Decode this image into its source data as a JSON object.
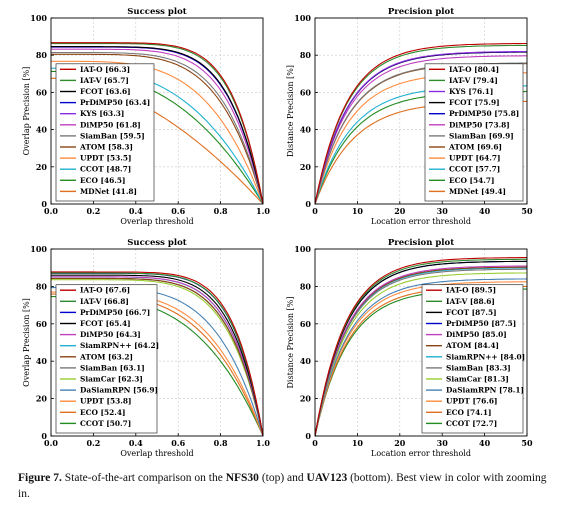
{
  "charts": [
    {
      "id": "nfs-success",
      "type": "line",
      "kind": "success",
      "title": "Success plot",
      "xlabel": "Overlap threshold",
      "ylabel": "Overlap Precision [%]",
      "xlim": [
        0,
        1
      ],
      "ylim": [
        0,
        100
      ],
      "xticks": [
        "0.0",
        "0.2",
        "0.4",
        "0.6",
        "0.8",
        "1.0"
      ],
      "yticks": [
        "0",
        "20",
        "40",
        "60",
        "80",
        "100"
      ],
      "legend_position": "bottom-left",
      "series": [
        {
          "name": "IAT-O [66.3]",
          "score": 66.3,
          "color": "#c00000"
        },
        {
          "name": "IAT-V [65.7]",
          "score": 65.7,
          "color": "#2e8b2e"
        },
        {
          "name": "FCOT [63.6]",
          "score": 63.6,
          "color": "#000000"
        },
        {
          "name": "PrDiMP50 [63.4]",
          "score": 63.4,
          "color": "#0000cc"
        },
        {
          "name": "KYS [63.3]",
          "score": 63.3,
          "color": "#8a2be2"
        },
        {
          "name": "DiMP50 [61.8]",
          "score": 61.8,
          "color": "#c040c0"
        },
        {
          "name": "SiamBan [59.5]",
          "score": 59.5,
          "color": "#7a7a7a"
        },
        {
          "name": "ATOM [58.3]",
          "score": 58.3,
          "color": "#8b4513"
        },
        {
          "name": "UPDT [53.5]",
          "score": 53.5,
          "color": "#ff8c40"
        },
        {
          "name": "CCOT [48.7]",
          "score": 48.7,
          "color": "#20b2d0"
        },
        {
          "name": "ECO [46.5]",
          "score": 46.5,
          "color": "#228b22"
        },
        {
          "name": "MDNet [41.8]",
          "score": 41.8,
          "color": "#e07020"
        }
      ]
    },
    {
      "id": "nfs-precision",
      "type": "line",
      "kind": "precision",
      "title": "Precision plot",
      "xlabel": "Location error threshold",
      "ylabel": "Distance Precision [%]",
      "xlim": [
        0,
        50
      ],
      "ylim": [
        0,
        100
      ],
      "xticks": [
        "0",
        "10",
        "20",
        "30",
        "40",
        "50"
      ],
      "yticks": [
        "0",
        "20",
        "40",
        "60",
        "80",
        "100"
      ],
      "legend_position": "bottom-right",
      "series": [
        {
          "name": "IAT-O [80.4]",
          "score": 80.4,
          "color": "#c00000"
        },
        {
          "name": "IAT-V [79.4]",
          "score": 79.4,
          "color": "#2e8b2e"
        },
        {
          "name": "KYS [76.1]",
          "score": 76.1,
          "color": "#8a2be2"
        },
        {
          "name": "FCOT [75.9]",
          "score": 75.9,
          "color": "#000000"
        },
        {
          "name": "PrDiMP50 [75.8]",
          "score": 75.8,
          "color": "#0000cc"
        },
        {
          "name": "DiMP50 [73.8]",
          "score": 73.8,
          "color": "#c040c0"
        },
        {
          "name": "SiamBan [69.9]",
          "score": 69.9,
          "color": "#7a7a7a"
        },
        {
          "name": "ATOM [69.6]",
          "score": 69.6,
          "color": "#8b4513"
        },
        {
          "name": "UPDT [64.7]",
          "score": 64.7,
          "color": "#ff8c40"
        },
        {
          "name": "CCOT [57.7]",
          "score": 57.7,
          "color": "#20b2d0"
        },
        {
          "name": "ECO [54.7]",
          "score": 54.7,
          "color": "#228b22"
        },
        {
          "name": "MDNet [49.4]",
          "score": 49.4,
          "color": "#e07020"
        }
      ]
    },
    {
      "id": "uav-success",
      "type": "line",
      "kind": "success",
      "title": "Success plot",
      "xlabel": "Overlap threshold",
      "ylabel": "Overlap Precision [%]",
      "xlim": [
        0,
        1
      ],
      "ylim": [
        0,
        100
      ],
      "xticks": [
        "0.0",
        "0.2",
        "0.4",
        "0.6",
        "0.8",
        "1.0"
      ],
      "yticks": [
        "0",
        "20",
        "40",
        "60",
        "80",
        "100"
      ],
      "legend_position": "bottom-left",
      "series": [
        {
          "name": "IAT-O [67.6]",
          "score": 67.6,
          "color": "#c00000"
        },
        {
          "name": "IAT-V [66.8]",
          "score": 66.8,
          "color": "#2e8b2e"
        },
        {
          "name": "PrDiMP50 [66.7]",
          "score": 66.7,
          "color": "#0000cc"
        },
        {
          "name": "FCOT [65.4]",
          "score": 65.4,
          "color": "#000000"
        },
        {
          "name": "DiMP50 [64.3]",
          "score": 64.3,
          "color": "#c040c0"
        },
        {
          "name": "SiamRPN++ [64.2]",
          "score": 64.2,
          "color": "#20b2d0"
        },
        {
          "name": "ATOM [63.2]",
          "score": 63.2,
          "color": "#8b4513"
        },
        {
          "name": "SiamBan [63.1]",
          "score": 63.1,
          "color": "#7a7a7a"
        },
        {
          "name": "SiamCar [62.3]",
          "score": 62.3,
          "color": "#9acd32"
        },
        {
          "name": "DaSiamRPN [56.9]",
          "score": 56.9,
          "color": "#4682b4"
        },
        {
          "name": "UPDT [53.8]",
          "score": 53.8,
          "color": "#ff8c40"
        },
        {
          "name": "ECO [52.4]",
          "score": 52.4,
          "color": "#e07020"
        },
        {
          "name": "CCOT [50.7]",
          "score": 50.7,
          "color": "#228b22"
        }
      ]
    },
    {
      "id": "uav-precision",
      "type": "line",
      "kind": "precision",
      "title": "Precision plot",
      "xlabel": "Location error threshold",
      "ylabel": "Distance Precision [%]",
      "xlim": [
        0,
        50
      ],
      "ylim": [
        0,
        100
      ],
      "xticks": [
        "0",
        "10",
        "20",
        "30",
        "40",
        "50"
      ],
      "yticks": [
        "0",
        "20",
        "40",
        "60",
        "80",
        "100"
      ],
      "legend_position": "bottom-right",
      "series": [
        {
          "name": "IAT-O [89.5]",
          "score": 89.5,
          "color": "#c00000"
        },
        {
          "name": "IAT-V [88.6]",
          "score": 88.6,
          "color": "#2e8b2e"
        },
        {
          "name": "FCOT [87.5]",
          "score": 87.5,
          "color": "#000000"
        },
        {
          "name": "PrDiMP50 [87.5]",
          "score": 87.5,
          "color": "#0000cc"
        },
        {
          "name": "DiMP50 [85.0]",
          "score": 85.0,
          "color": "#c040c0"
        },
        {
          "name": "ATOM [84.4]",
          "score": 84.4,
          "color": "#8b4513"
        },
        {
          "name": "SiamRPN++ [84.0]",
          "score": 84.0,
          "color": "#20b2d0"
        },
        {
          "name": "SiamBan [83.3]",
          "score": 83.3,
          "color": "#7a7a7a"
        },
        {
          "name": "SiamCar [81.3]",
          "score": 81.3,
          "color": "#9acd32"
        },
        {
          "name": "DaSiamRPN [78.1]",
          "score": 78.1,
          "color": "#4682b4"
        },
        {
          "name": "UPDT [76.6]",
          "score": 76.6,
          "color": "#ff8c40"
        },
        {
          "name": "ECO [74.1]",
          "score": 74.1,
          "color": "#e07020"
        },
        {
          "name": "CCOT [72.7]",
          "score": 72.7,
          "color": "#228b22"
        }
      ]
    }
  ],
  "caption": {
    "label": "Figure 7.",
    "text_before": "State-of-the-art comparison on the",
    "dataset_top": "NFS30",
    "text_middle": "(top) and",
    "dataset_bottom": "UAV123",
    "text_after": "(bottom). Best view in color with zooming in."
  }
}
